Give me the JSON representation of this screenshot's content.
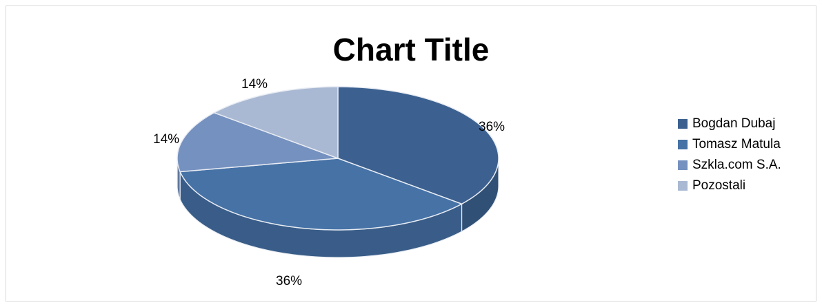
{
  "chart_data": {
    "type": "pie",
    "title": "Chart Title",
    "categories": [
      "Bogdan Dubaj",
      "Tomasz Matula",
      "Szkla.com S.A.",
      "Pozostali"
    ],
    "values": [
      36,
      36,
      14,
      14
    ],
    "labels": [
      "36%",
      "36%",
      "14%",
      "14%"
    ],
    "colors": [
      "#3c6190",
      "#4672a6",
      "#7591bf",
      "#aab9d3"
    ],
    "legend_position": "right",
    "three_d": true
  }
}
